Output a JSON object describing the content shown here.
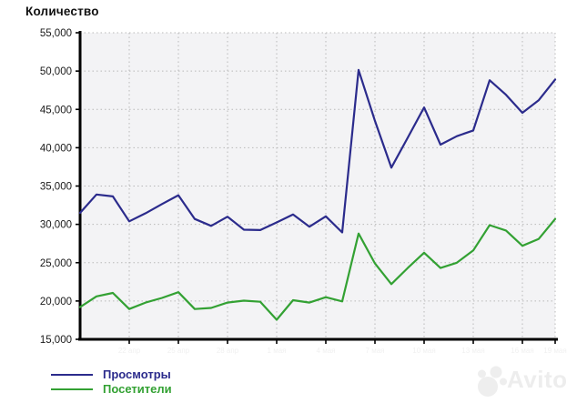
{
  "title": "Количество",
  "legend": {
    "items": [
      {
        "label": "Просмотры",
        "color": "#2b2b8c"
      },
      {
        "label": "Посетители",
        "color": "#33a133"
      }
    ]
  },
  "watermark": {
    "text": "Avito"
  },
  "colors": {
    "grid": "#b9b9b9",
    "axis": "#000000",
    "plot_bg": "#f3f3f5",
    "tick_label": "#1a1a1a",
    "faint_label": "#f0f0f0",
    "watermark": "#ededed"
  },
  "chart_data": {
    "type": "line",
    "title": "Количество",
    "xlabel": "",
    "ylabel": "",
    "x_count": 30,
    "x_tick_labels_faint": [
      "22 апр",
      "25 апр",
      "28 апр",
      "1 мая",
      "4 мая",
      "7 мая",
      "10 мая",
      "13 мая",
      "16 мая",
      "19 мая"
    ],
    "ylim": [
      15000,
      55000
    ],
    "ytick_step": 5000,
    "grid": "dotted",
    "legend_position": "bottom-left",
    "series": [
      {
        "name": "Просмотры",
        "color": "#2b2b8c",
        "values": [
          31500,
          33900,
          33650,
          30400,
          31450,
          32650,
          33800,
          30700,
          29800,
          31000,
          29300,
          29250,
          30250,
          31300,
          29700,
          31050,
          28950,
          50150,
          43500,
          37400,
          41300,
          45250,
          40400,
          41500,
          42250,
          48800,
          46900,
          44550,
          46200,
          48900
        ]
      },
      {
        "name": "Посетители",
        "color": "#33a133",
        "values": [
          19200,
          20600,
          21050,
          18950,
          19800,
          20400,
          21150,
          18950,
          19100,
          19800,
          20050,
          19900,
          17550,
          20100,
          19800,
          20500,
          19950,
          28800,
          24900,
          22200,
          24300,
          26300,
          24300,
          25000,
          26600,
          29900,
          29200,
          27200,
          28100,
          30700
        ]
      }
    ]
  }
}
